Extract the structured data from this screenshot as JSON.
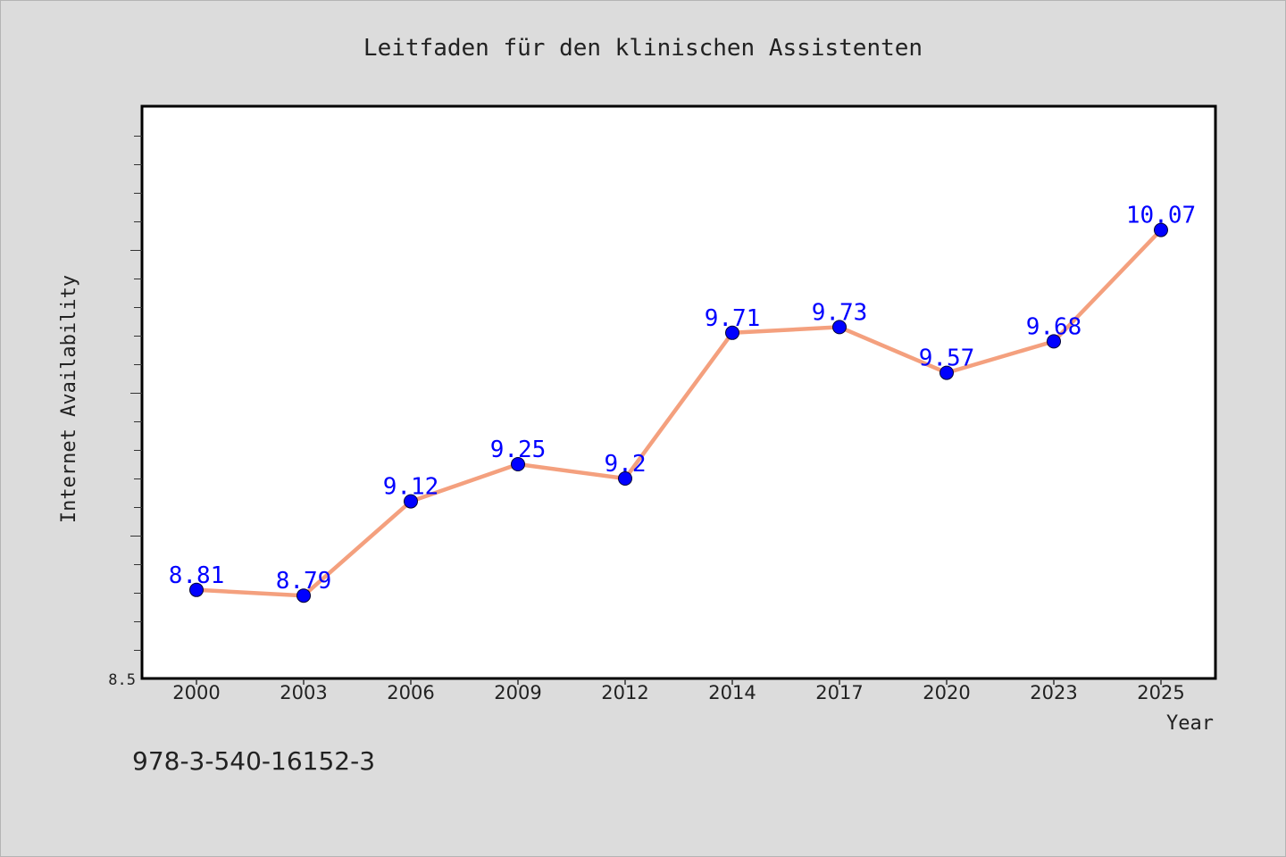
{
  "chart_data": {
    "type": "line",
    "title": "Leitfaden für den klinischen Assistenten",
    "xlabel": "Year",
    "ylabel": "Internet Availability",
    "categories": [
      "2000",
      "2003",
      "2006",
      "2009",
      "2012",
      "2014",
      "2017",
      "2020",
      "2023",
      "2025"
    ],
    "series": [
      {
        "values": [
          8.81,
          8.79,
          9.12,
          9.25,
          9.2,
          9.71,
          9.73,
          9.57,
          9.68,
          10.07
        ],
        "labels": [
          "8.81",
          "8.79",
          "9.12",
          "9.25",
          "9.2",
          "9.71",
          "9.73",
          "9.57",
          "9.68",
          "10.07"
        ]
      }
    ],
    "ylim": [
      8.5,
      10.5
    ],
    "y_tick_label": "8.5",
    "grid": false,
    "line_color": "#f4a07e",
    "marker_color": "#0000ff",
    "label_color": "#0000ff"
  },
  "footer_text": "978-3-540-16152-3"
}
